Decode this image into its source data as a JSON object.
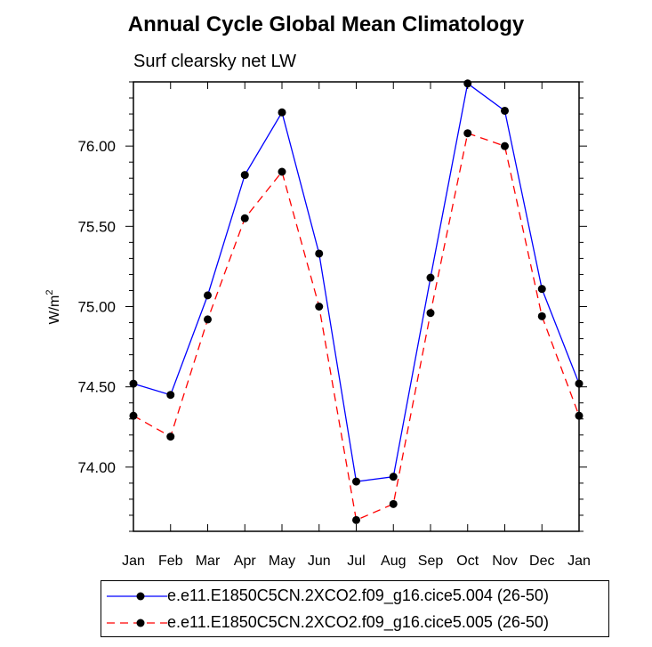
{
  "chart_data": {
    "type": "line",
    "title": "Annual Cycle Global Mean Climatology",
    "subtitle": "Surf clearsky net LW",
    "ylabel": "W/m",
    "ylabel_superscript": "2",
    "xlabel": "",
    "categories": [
      "Jan",
      "Feb",
      "Mar",
      "Apr",
      "May",
      "Jun",
      "Jul",
      "Aug",
      "Sep",
      "Oct",
      "Nov",
      "Dec",
      "Jan"
    ],
    "ylim": [
      73.6,
      76.4
    ],
    "yticks": [
      74.0,
      74.5,
      75.0,
      75.5,
      76.0
    ],
    "ytick_labels": [
      "74.00",
      "74.50",
      "75.00",
      "75.50",
      "76.00"
    ],
    "series": [
      {
        "name": "e.e11.E1850C5CN.2XCO2.f09_g16.cice5.004 (26-50)",
        "color": "#0000ff",
        "dash": "solid",
        "values": [
          74.52,
          74.45,
          75.07,
          75.82,
          76.21,
          75.33,
          73.91,
          73.94,
          75.18,
          76.39,
          76.22,
          75.11,
          74.52
        ]
      },
      {
        "name": "e.e11.E1850C5CN.2XCO2.f09_g16.cice5.005 (26-50)",
        "color": "#ff0000",
        "dash": "dashed",
        "values": [
          74.32,
          74.19,
          74.92,
          75.55,
          75.84,
          75.0,
          73.67,
          73.77,
          74.96,
          76.08,
          76.0,
          74.94,
          74.32
        ]
      }
    ]
  }
}
